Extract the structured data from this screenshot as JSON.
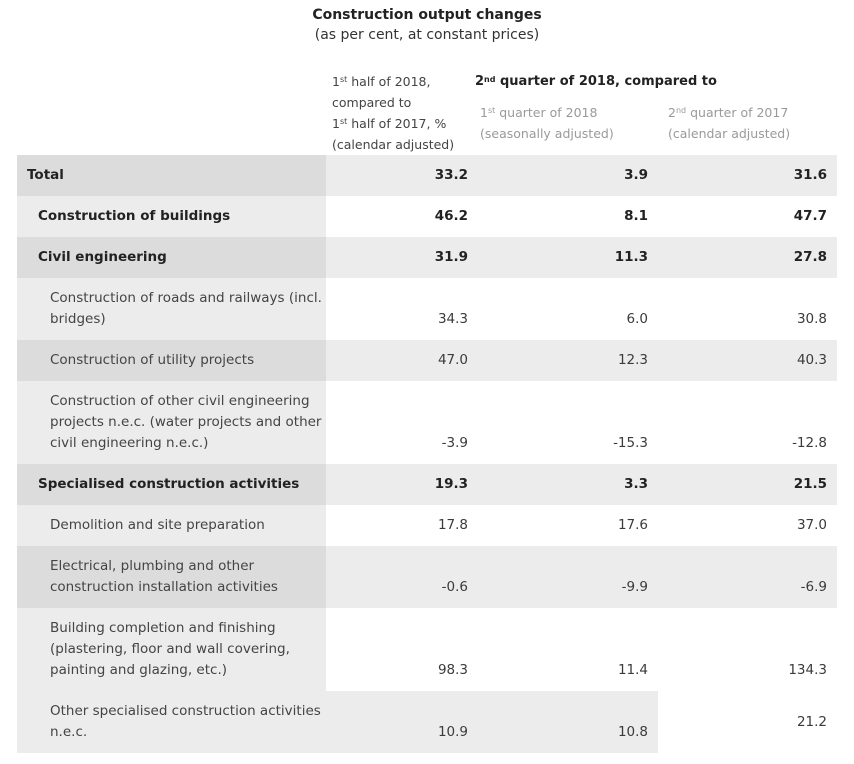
{
  "title": "Construction output changes",
  "subtitle": "(as per cent, at constant prices)",
  "headers": {
    "col1": {
      "line1_pre": "1",
      "line1_sup": "st",
      "line1_post": " half of 2018,",
      "line2": "compared to",
      "line3_pre": "1",
      "line3_sup": "st",
      "line3_post": " half of 2017, %",
      "line4": "(calendar adjusted)"
    },
    "group": {
      "pre": "2",
      "sup": "nd",
      "post": " quarter of 2018, compared to"
    },
    "col2": {
      "line1_pre": "1",
      "line1_sup": "st",
      "line1_post": " quarter of 2018",
      "line2": "(seasonally adjusted)"
    },
    "col3": {
      "line1_pre": "2",
      "line1_sup": "nd",
      "line1_post": " quarter of 2017",
      "line2": "(calendar adjusted)"
    }
  },
  "rows": [
    {
      "label": "Total",
      "v1": "33.2",
      "v2": "3.9",
      "v3": "31.6"
    },
    {
      "label": "Construction of buildings",
      "v1": "46.2",
      "v2": "8.1",
      "v3": "47.7"
    },
    {
      "label": "Civil engineering",
      "v1": "31.9",
      "v2": "11.3",
      "v3": "27.8"
    },
    {
      "label": "Construction of roads and railways (incl. bridges)",
      "v1": "34.3",
      "v2": "6.0",
      "v3": "30.8"
    },
    {
      "label": "Construction of utility projects",
      "v1": "47.0",
      "v2": "12.3",
      "v3": "40.3"
    },
    {
      "label": "Construction of other civil engineering projects n.e.c. (water projects and other civil engineering n.e.c.)",
      "v1": "-3.9",
      "v2": "-15.3",
      "v3": "-12.8"
    },
    {
      "label": "Specialised construction activities",
      "v1": "19.3",
      "v2": "3.3",
      "v3": "21.5"
    },
    {
      "label": "Demolition and site preparation",
      "v1": "17.8",
      "v2": "17.6",
      "v3": "37.0"
    },
    {
      "label": "Electrical, plumbing and other construction installation activities",
      "v1": "-0.6",
      "v2": "-9.9",
      "v3": "-6.9"
    },
    {
      "label": "Building completion and finishing (plastering, floor and wall covering, painting and glazing, etc.)",
      "v1": "98.3",
      "v2": "11.4",
      "v3": "134.3"
    },
    {
      "label": "Other specialised construction activities n.e.c.",
      "v1": "10.9",
      "v2": "10.8",
      "v3": "21.2"
    }
  ]
}
